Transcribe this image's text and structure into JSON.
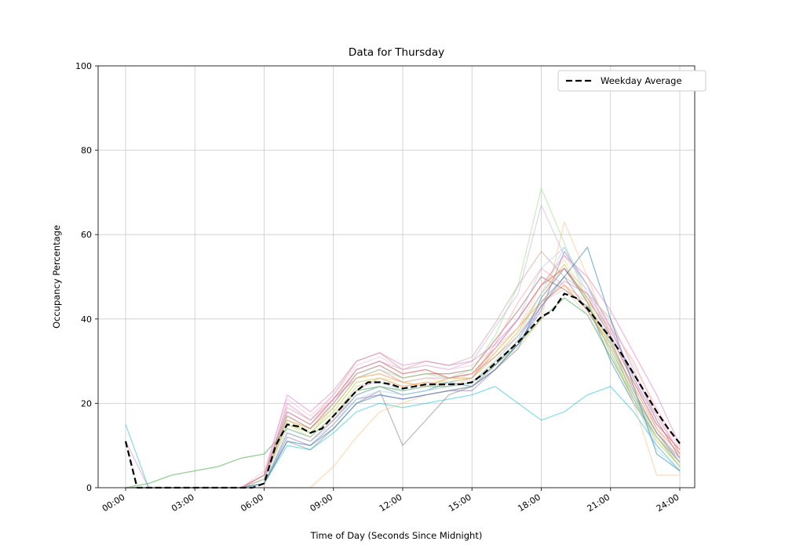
{
  "chart_data": {
    "type": "line",
    "title": "Data for Thursday",
    "xlabel": "Time of Day (Seconds Since Midnight)",
    "ylabel": "Occupancy Percentage",
    "legend_label": "Weekday Average",
    "legend_position": "upper right",
    "grid": true,
    "xlim_hours": [
      0,
      24
    ],
    "ylim": [
      0,
      100
    ],
    "xticks_hours": [
      0,
      3,
      6,
      9,
      12,
      15,
      18,
      21,
      24
    ],
    "xtick_labels": [
      "00:00",
      "03:00",
      "06:00",
      "09:00",
      "12:00",
      "15:00",
      "18:00",
      "21:00",
      "24:00"
    ],
    "yticks": [
      0,
      20,
      40,
      60,
      80,
      100
    ],
    "average": {
      "name": "Weekday Average",
      "color": "#000000",
      "style": "dashed",
      "x_hours": [
        0,
        0.5,
        1,
        1.5,
        2,
        2.5,
        3,
        3.5,
        4,
        4.5,
        5,
        5.5,
        6,
        6.5,
        7,
        7.5,
        8,
        8.5,
        9,
        9.5,
        10,
        10.5,
        11,
        11.5,
        12,
        12.5,
        13,
        13.5,
        14,
        14.5,
        15,
        15.5,
        16,
        16.5,
        17,
        17.5,
        18,
        18.5,
        19,
        19.5,
        20,
        20.5,
        21,
        21.5,
        22,
        22.5,
        23,
        23.5,
        24
      ],
      "values": [
        11,
        0,
        0,
        0,
        0,
        0,
        0,
        0,
        0,
        0,
        0,
        0,
        1,
        10,
        15,
        14.5,
        13,
        14,
        17,
        20,
        23,
        25,
        25,
        24.5,
        23.5,
        24,
        24.5,
        24.5,
        24.5,
        24.5,
        25,
        27,
        29.5,
        32,
        34.5,
        37.5,
        40.5,
        42,
        46,
        45,
        42.5,
        39,
        35.5,
        31.5,
        27,
        22.5,
        18,
        14,
        10.5,
        7
      ]
    },
    "series_x_hours": [
      0,
      1,
      2,
      3,
      4,
      5,
      6,
      7,
      8,
      9,
      10,
      11,
      12,
      13,
      14,
      15,
      16,
      17,
      18,
      19,
      20,
      21,
      22,
      23,
      24
    ],
    "series": [
      {
        "color": "#1f77b4",
        "values": [
          0,
          0,
          0,
          0,
          0,
          0,
          1,
          13,
          11,
          16,
          22,
          24,
          22,
          23,
          25,
          24,
          28,
          33,
          45,
          52,
          44,
          30,
          20,
          12,
          5
        ]
      },
      {
        "color": "#ff7f0e",
        "values": [
          0,
          0,
          0,
          0,
          0,
          0,
          2,
          16,
          14,
          19,
          26,
          27,
          25,
          24,
          26,
          26,
          32,
          38,
          44,
          48,
          42,
          34,
          24,
          14,
          8
        ]
      },
      {
        "color": "#2ca02c",
        "values": [
          0,
          1,
          3,
          4,
          5,
          7,
          8,
          14,
          12,
          17,
          23,
          24,
          23,
          24,
          24,
          25,
          29,
          34,
          40,
          45,
          41,
          31,
          21,
          12,
          6
        ]
      },
      {
        "color": "#d62728",
        "values": [
          0,
          0,
          0,
          0,
          0,
          0,
          3,
          18,
          15,
          21,
          28,
          30,
          27,
          28,
          26,
          27,
          33,
          40,
          48,
          52,
          45,
          36,
          25,
          15,
          9
        ]
      },
      {
        "color": "#9467bd",
        "values": [
          0,
          0,
          0,
          0,
          0,
          0,
          1,
          12,
          10,
          15,
          21,
          22,
          21,
          22,
          23,
          23,
          28,
          34,
          42,
          56,
          48,
          38,
          26,
          16,
          7
        ]
      },
      {
        "color": "#8c564b",
        "values": [
          0,
          0,
          0,
          0,
          0,
          0,
          2,
          17,
          14,
          20,
          27,
          29,
          26,
          27,
          27,
          28,
          35,
          42,
          50,
          47,
          43,
          35,
          23,
          13,
          6
        ]
      },
      {
        "color": "#e377c2",
        "values": [
          11,
          0,
          0,
          0,
          0,
          0,
          2,
          20,
          16,
          21,
          26,
          28,
          25,
          26,
          26,
          27,
          31,
          36,
          43,
          49,
          46,
          37,
          27,
          17,
          8
        ]
      },
      {
        "color": "#7f7f7f",
        "values": [
          0,
          0,
          0,
          0,
          0,
          0,
          1,
          11,
          9,
          14,
          20,
          23,
          10,
          16,
          22,
          24,
          29,
          35,
          44,
          50,
          42,
          33,
          22,
          13,
          7
        ]
      },
      {
        "color": "#bcbd22",
        "values": [
          0,
          0,
          0,
          0,
          0,
          0,
          2,
          15,
          13,
          18,
          25,
          26,
          24,
          25,
          25,
          26,
          31,
          37,
          46,
          53,
          44,
          32,
          21,
          11,
          5
        ]
      },
      {
        "color": "#17becf",
        "values": [
          15,
          0,
          0,
          0,
          0,
          0,
          1,
          10,
          9,
          13,
          18,
          20,
          19,
          20,
          21,
          22,
          24,
          20,
          16,
          18,
          22,
          24,
          18,
          10,
          4
        ]
      },
      {
        "color": "#aec7e8",
        "values": [
          0,
          0,
          0,
          0,
          0,
          0,
          2,
          14,
          12,
          17,
          24,
          25,
          23,
          24,
          25,
          26,
          33,
          40,
          52,
          57,
          46,
          34,
          22,
          10,
          4
        ]
      },
      {
        "color": "#ffbb78",
        "values": [
          0,
          0,
          0,
          0,
          0,
          0,
          0,
          0,
          0,
          5,
          12,
          18,
          20,
          22,
          23,
          24,
          28,
          33,
          40,
          63,
          50,
          36,
          20,
          3,
          3
        ]
      },
      {
        "color": "#98df8a",
        "values": [
          0,
          0,
          0,
          0,
          0,
          0,
          2,
          16,
          13,
          19,
          26,
          28,
          26,
          27,
          26,
          28,
          36,
          48,
          71,
          58,
          44,
          34,
          22,
          12,
          5
        ]
      },
      {
        "color": "#ff9896",
        "values": [
          0,
          0,
          0,
          0,
          0,
          0,
          1,
          13,
          11,
          16,
          23,
          26,
          24,
          25,
          24,
          26,
          34,
          44,
          52,
          48,
          44,
          38,
          30,
          18,
          8
        ]
      },
      {
        "color": "#c5b0d5",
        "values": [
          0,
          0,
          0,
          0,
          0,
          0,
          2,
          18,
          15,
          20,
          28,
          30,
          28,
          29,
          28,
          30,
          38,
          46,
          67,
          55,
          48,
          36,
          26,
          14,
          6
        ]
      },
      {
        "color": "#c49c94",
        "values": [
          0,
          0,
          0,
          0,
          0,
          0,
          3,
          19,
          16,
          22,
          30,
          32,
          28,
          30,
          29,
          31,
          39,
          48,
          56,
          50,
          46,
          40,
          28,
          16,
          7
        ]
      },
      {
        "color": "#f7b6d2",
        "values": [
          0,
          0,
          0,
          0,
          0,
          0,
          4,
          21,
          17,
          22,
          29,
          31,
          28,
          29,
          28,
          29,
          33,
          38,
          46,
          52,
          47,
          39,
          29,
          19,
          9
        ]
      },
      {
        "color": "#c7c7c7",
        "values": [
          0,
          0,
          0,
          0,
          0,
          0,
          1,
          12,
          10,
          15,
          22,
          24,
          22,
          23,
          24,
          25,
          30,
          36,
          44,
          47,
          41,
          32,
          20,
          12,
          6
        ]
      },
      {
        "color": "#dbdb8d",
        "values": [
          0,
          0,
          0,
          0,
          0,
          0,
          2,
          15,
          12,
          17,
          24,
          26,
          25,
          26,
          25,
          27,
          32,
          38,
          48,
          54,
          45,
          33,
          21,
          12,
          5
        ]
      },
      {
        "color": "#9edae5",
        "values": [
          0,
          0,
          0,
          0,
          0,
          0,
          1,
          13,
          11,
          15,
          21,
          23,
          22,
          23,
          24,
          25,
          30,
          36,
          46,
          57,
          48,
          35,
          21,
          9,
          4
        ]
      },
      {
        "color": "#e377c2",
        "values": [
          0,
          0,
          0,
          0,
          0,
          0,
          3,
          22,
          18,
          23,
          30,
          32,
          29,
          30,
          29,
          30,
          34,
          40,
          48,
          55,
          50,
          42,
          32,
          22,
          10
        ]
      },
      {
        "color": "#1f77b4",
        "values": [
          0,
          0,
          0,
          0,
          0,
          0,
          1,
          11,
          10,
          14,
          20,
          22,
          21,
          22,
          23,
          24,
          28,
          34,
          43,
          50,
          57,
          40,
          24,
          8,
          4
        ]
      }
    ],
    "colors": {
      "grid": "#c9c9c9",
      "spine": "#2b2b2b",
      "average_line": "#000000",
      "legend_border": "#cccccc",
      "background": "#ffffff"
    }
  }
}
